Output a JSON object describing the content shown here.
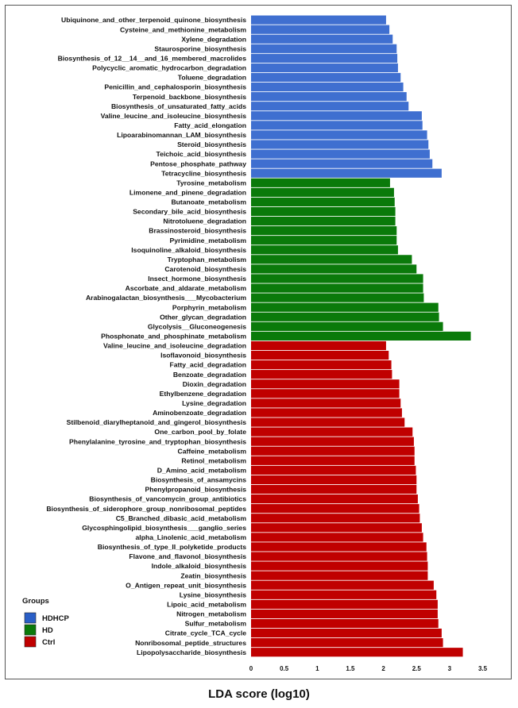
{
  "chart_data": {
    "type": "bar",
    "orientation": "horizontal",
    "xlabel": "LDA score (log10)",
    "xlim": [
      0,
      3.5
    ],
    "xticks": [
      0,
      0.5,
      1,
      1.5,
      2,
      2.5,
      3,
      3.5
    ],
    "xtick_labels": [
      "0",
      "0.5",
      "1",
      "1.5",
      "2",
      "2.5",
      "3",
      "3.5"
    ],
    "legend": {
      "title": "Groups",
      "placement": "bottom-left",
      "entries": [
        {
          "name": "HDHCP",
          "color": "#2a5fc7"
        },
        {
          "name": "HD",
          "color": "#0a7a0a"
        },
        {
          "name": "Ctrl",
          "color": "#c00000"
        }
      ]
    },
    "groups": [
      {
        "name": "HDHCP",
        "color": "#3f6fd0",
        "categories": [
          "Ubiquinone_and_other_terpenoid_quinone_biosynthesis",
          "Cysteine_and_methionine_metabolism",
          "Xylene_degradation",
          "Staurosporine_biosynthesis",
          "Biosynthesis_of_12__14__and_16_membered_macrolides",
          "Polycyclic_aromatic_hydrocarbon_degradation",
          "Toluene_degradation",
          "Penicillin_and_cephalosporin_biosynthesis",
          "Terpenoid_backbone_biosynthesis",
          "Biosynthesis_of_unsaturated_fatty_acids",
          "Valine_leucine_and_isoleucine_biosynthesis",
          "Fatty_acid_elongation",
          "Lipoarabinomannan_LAM_biosynthesis",
          "Steroid_biosynthesis",
          "Teichoic_acid_biosynthesis",
          "Pentose_phosphate_pathway",
          "Tetracycline_biosynthesis"
        ],
        "values": [
          2.04,
          2.09,
          2.14,
          2.2,
          2.21,
          2.22,
          2.26,
          2.3,
          2.35,
          2.38,
          2.58,
          2.59,
          2.66,
          2.68,
          2.7,
          2.74,
          2.88
        ]
      },
      {
        "name": "HD",
        "color": "#0a7a0a",
        "categories": [
          "Tyrosine_metabolism",
          "Limonene_and_pinene_degradation",
          "Butanoate_metabolism",
          "Secondary_bile_acid_biosynthesis",
          "Nitrotoluene_degradation",
          "Brassinosteroid_biosynthesis",
          "Pyrimidine_metabolism",
          "Isoquinoline_alkaloid_biosynthesis",
          "Tryptophan_metabolism",
          "Carotenoid_biosynthesis",
          "Insect_hormone_biosynthesis",
          "Ascorbate_and_aldarate_metabolism",
          "Arabinogalactan_biosynthesis___Mycobacterium",
          "Porphyrin_metabolism",
          "Other_glycan_degradation",
          "Glycolysis__Gluconeogenesis",
          "Phosphonate_and_phosphinate_metabolism"
        ],
        "values": [
          2.1,
          2.16,
          2.17,
          2.18,
          2.18,
          2.2,
          2.2,
          2.22,
          2.43,
          2.5,
          2.6,
          2.6,
          2.61,
          2.83,
          2.84,
          2.9,
          3.32
        ]
      },
      {
        "name": "Ctrl",
        "color": "#c00000",
        "categories": [
          "Valine_leucine_and_isoleucine_degradation",
          "Isoflavonoid_biosynthesis",
          "Fatty_acid_degradation",
          "Benzoate_degradation",
          "Dioxin_degradation",
          "Ethylbenzene_degradation",
          "Lysine_degradation",
          "Aminobenzoate_degradation",
          "Stilbenoid_diarylheptanoid_and_gingerol_biosynthesis",
          "One_carbon_pool_by_folate",
          "Phenylalanine_tyrosine_and_tryptophan_biosynthesis",
          "Caffeine_metabolism",
          "Retinol_metabolism",
          "D_Amino_acid_metabolism",
          "Biosynthesis_of_ansamycins",
          "Phenylpropanoid_biosynthesis",
          "Biosynthesis_of_vancomycin_group_antibiotics",
          "Biosynthesis_of_siderophore_group_nonribosomal_peptides",
          "C5_Branched_dibasic_acid_metabolism",
          "Glycosphingolipid_biosynthesis___ganglio_series",
          "alpha_Linolenic_acid_metabolism",
          "Biosynthesis_of_type_II_polyketide_products",
          "Flavone_and_flavonol_biosynthesis",
          "Indole_alkaloid_biosynthesis",
          "Zeatin_biosynthesis",
          "O_Antigen_repeat_unit_biosynthesis",
          "Lysine_biosynthesis",
          "Lipoic_acid_metabolism",
          "Nitrogen_metabolism",
          "Sulfur_metabolism",
          "Citrate_cycle_TCA_cycle",
          "Nonribosomal_peptide_structures",
          "Lipopolysaccharide_biosynthesis"
        ],
        "values": [
          2.04,
          2.08,
          2.12,
          2.13,
          2.24,
          2.24,
          2.26,
          2.28,
          2.32,
          2.44,
          2.46,
          2.47,
          2.47,
          2.49,
          2.5,
          2.5,
          2.52,
          2.54,
          2.55,
          2.58,
          2.6,
          2.65,
          2.66,
          2.67,
          2.67,
          2.76,
          2.8,
          2.82,
          2.82,
          2.83,
          2.88,
          2.9,
          3.2
        ]
      }
    ]
  }
}
